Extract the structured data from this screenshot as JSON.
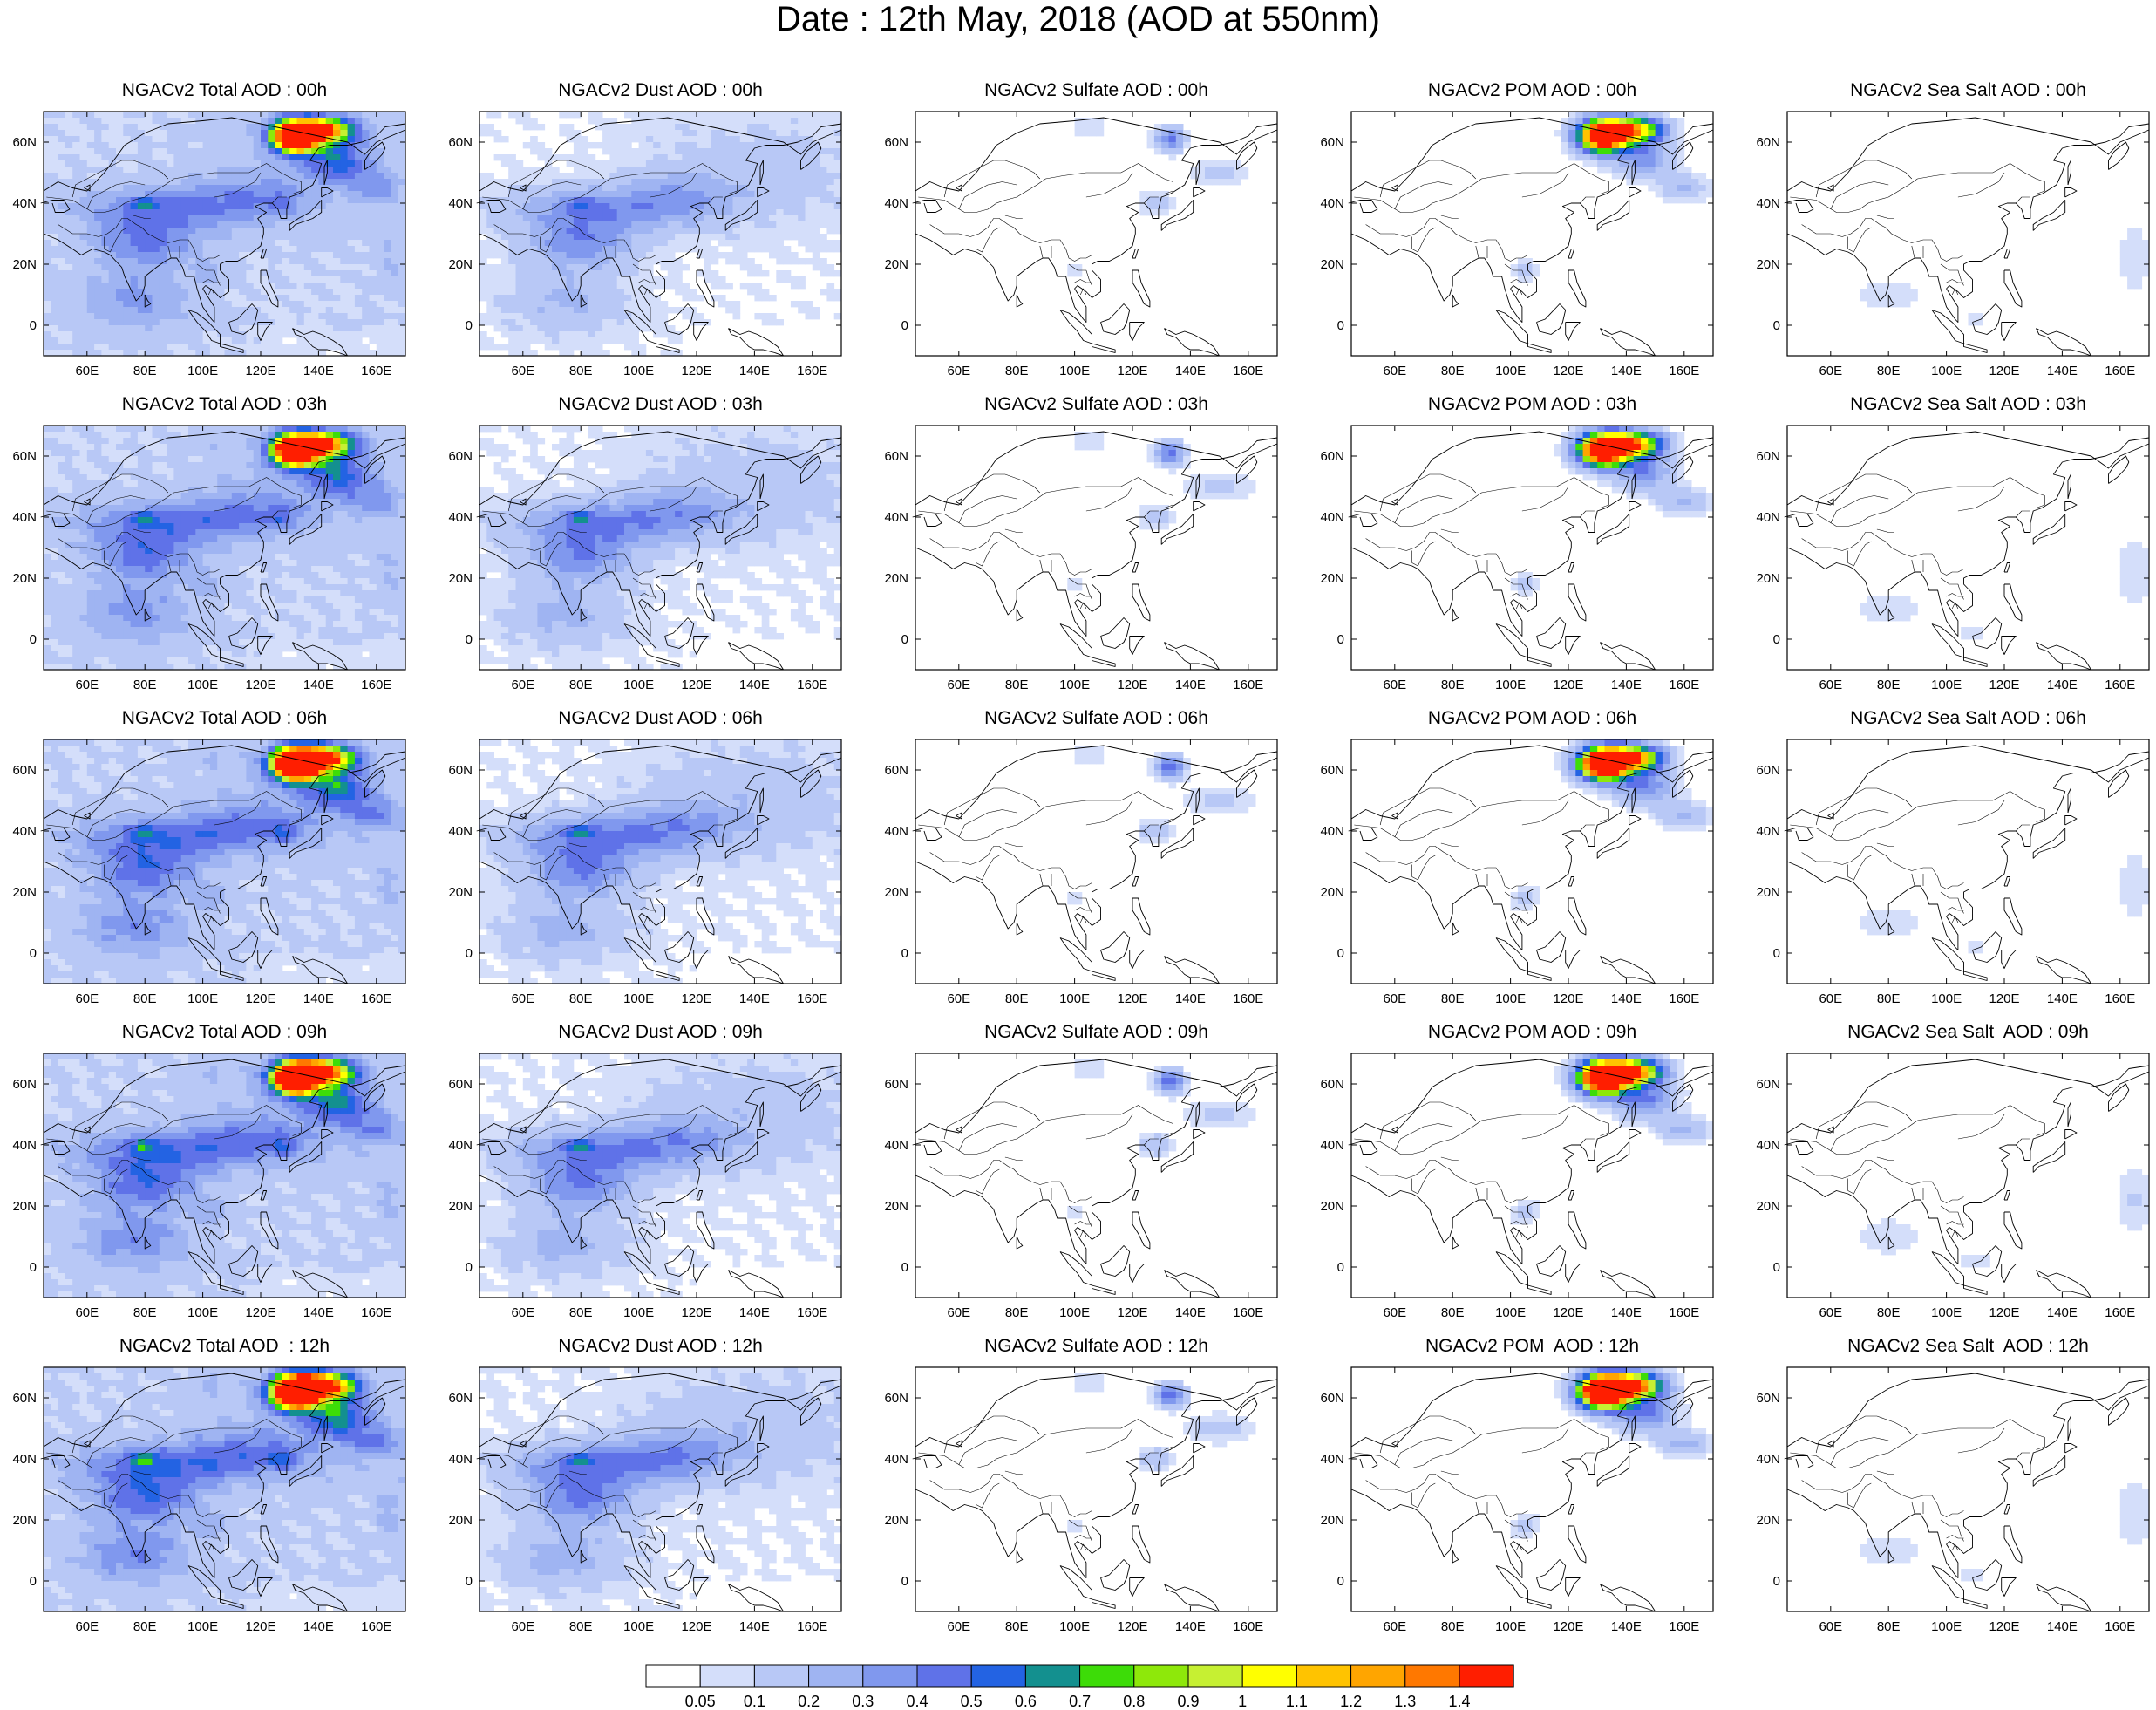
{
  "title": "Date : 12th May, 2018 (AOD at 550nm)",
  "rows": [
    [
      "NGACv2 Total AOD : 00h",
      "NGACv2 Dust AOD : 00h",
      "NGACv2 Sulfate AOD : 00h",
      "NGACv2 POM AOD : 00h",
      "NGACv2 Sea Salt AOD : 00h"
    ],
    [
      "NGACv2 Total AOD : 03h",
      "NGACv2 Dust AOD : 03h",
      "NGACv2 Sulfate AOD : 03h",
      "NGACv2 POM AOD : 03h",
      "NGACv2 Sea Salt AOD : 03h"
    ],
    [
      "NGACv2 Total AOD : 06h",
      "NGACv2 Dust AOD : 06h",
      "NGACv2 Sulfate AOD : 06h",
      "NGACv2 POM AOD : 06h",
      "NGACv2 Sea Salt AOD : 06h"
    ],
    [
      "NGACv2 Total AOD : 09h",
      "NGACv2 Dust AOD : 09h",
      "NGACv2 Sulfate AOD : 09h",
      "NGACv2 POM AOD : 09h",
      "NGACv2 Sea Salt  AOD : 09h"
    ],
    [
      "NGACv2 Total AOD  : 12h",
      "NGACv2 Dust AOD : 12h",
      "NGACv2 Sulfate AOD : 12h",
      "NGACv2 POM  AOD : 12h",
      "NGACv2 Sea Salt  AOD : 12h"
    ]
  ],
  "x_ticks": [
    "60E",
    "80E",
    "100E",
    "120E",
    "140E",
    "160E"
  ],
  "y_ticks": [
    "60N",
    "40N",
    "20N",
    "0"
  ],
  "colorbar": {
    "labels": [
      "0.05",
      "0.1",
      "0.2",
      "0.3",
      "0.4",
      "0.5",
      "0.6",
      "0.7",
      "0.8",
      "0.9",
      "1",
      "1.1",
      "1.2",
      "1.3",
      "1.4"
    ],
    "colors": [
      "#ffffff",
      "#d4defa",
      "#b8c8f6",
      "#9fb4f2",
      "#8098ee",
      "#5f72e8",
      "#2363e3",
      "#13908f",
      "#3ddc08",
      "#8ee80a",
      "#c6f032",
      "#ffff00",
      "#ffc300",
      "#ffa500",
      "#ff7800",
      "#ff1e00"
    ]
  },
  "panels": {
    "total": [
      {
        "hot": 1.0,
        "s": 1.0
      },
      {
        "hot": 1.0,
        "s": 1.05
      },
      {
        "hot": 1.15,
        "s": 1.1
      },
      {
        "hot": 1.1,
        "s": 1.12
      },
      {
        "hot": 1.2,
        "s": 1.15
      }
    ],
    "dust": [
      {
        "s": 1.0
      },
      {
        "s": 1.05
      },
      {
        "s": 1.1
      },
      {
        "s": 1.08
      },
      {
        "s": 1.12
      }
    ],
    "sulfate": [
      {
        "s": 1.0
      },
      {
        "s": 1.05
      },
      {
        "s": 1.1
      },
      {
        "s": 1.12
      },
      {
        "s": 1.15
      }
    ],
    "pom": [
      {
        "s": 1.0
      },
      {
        "s": 1.05
      },
      {
        "s": 1.1
      },
      {
        "s": 1.15
      },
      {
        "s": 1.2
      }
    ],
    "seasalt": [
      {
        "s": 1.0
      },
      {
        "s": 1.05
      },
      {
        "s": 1.0
      },
      {
        "s": 1.1
      },
      {
        "s": 1.05
      }
    ]
  }
}
